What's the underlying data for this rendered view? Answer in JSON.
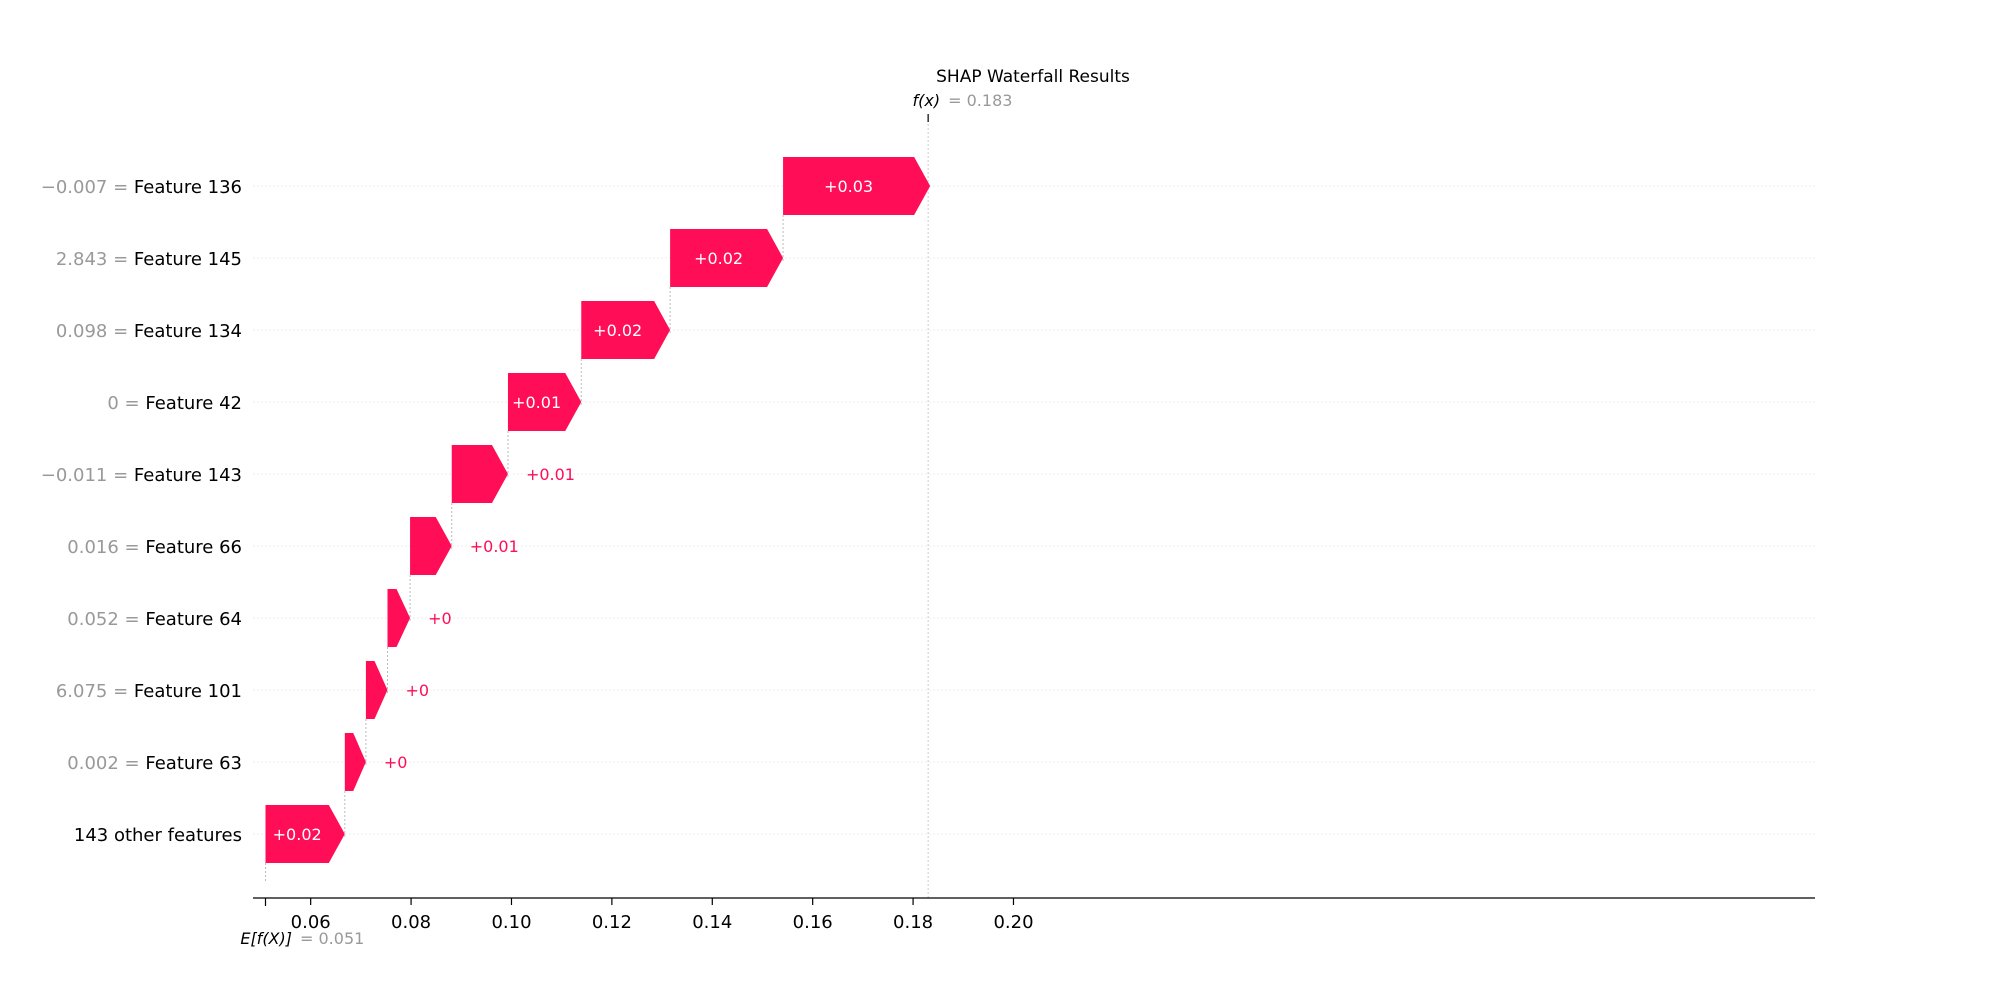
{
  "chart_data": {
    "type": "waterfall",
    "title": "SHAP Waterfall Results",
    "base_value": 0.051,
    "base_label": "E[f(X)]",
    "base_value_text": "= 0.051",
    "output_value": 0.183,
    "output_label": "f(x)",
    "output_value_text": "= 0.183",
    "xlim": [
      0.051,
      0.205
    ],
    "xticks": [
      {
        "value": 0.06,
        "label": "0.06"
      },
      {
        "value": 0.08,
        "label": "0.08"
      },
      {
        "value": 0.1,
        "label": "0.10"
      },
      {
        "value": 0.12,
        "label": "0.12"
      },
      {
        "value": 0.14,
        "label": "0.14"
      },
      {
        "value": 0.16,
        "label": "0.16"
      },
      {
        "value": 0.18,
        "label": "0.18"
      },
      {
        "value": 0.2,
        "label": "0.20"
      }
    ],
    "positive_color": "#ff0d57",
    "features": [
      {
        "value_text": "−0.007",
        "name": "Feature 136",
        "start": 0.1541,
        "end": 0.1834,
        "label": "+0.03"
      },
      {
        "value_text": "2.843",
        "name": "Feature 145",
        "start": 0.1316,
        "end": 0.1541,
        "label": "+0.02"
      },
      {
        "value_text": "0.098",
        "name": "Feature 134",
        "start": 0.1139,
        "end": 0.1316,
        "label": "+0.02"
      },
      {
        "value_text": "0",
        "name": "Feature 42",
        "start": 0.0993,
        "end": 0.1139,
        "label": "+0.01"
      },
      {
        "value_text": "−0.011",
        "name": "Feature 143",
        "start": 0.0881,
        "end": 0.0993,
        "label": "+0.01"
      },
      {
        "value_text": "0.016",
        "name": "Feature 66",
        "start": 0.0798,
        "end": 0.0881,
        "label": "+0.01"
      },
      {
        "value_text": "0.052",
        "name": "Feature 64",
        "start": 0.0753,
        "end": 0.0798,
        "label": "+0"
      },
      {
        "value_text": "6.075",
        "name": "Feature 101",
        "start": 0.071,
        "end": 0.0753,
        "label": "+0"
      },
      {
        "value_text": "0.002",
        "name": "Feature 63",
        "start": 0.0668,
        "end": 0.071,
        "label": "+0"
      },
      {
        "value_text": "",
        "name": "143 other features",
        "start": 0.051,
        "end": 0.0668,
        "label": "+0.02"
      }
    ]
  }
}
